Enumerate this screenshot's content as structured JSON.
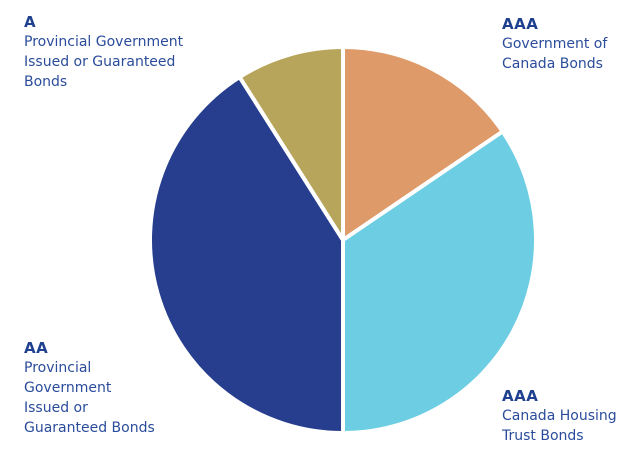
{
  "chart_data": {
    "type": "pie",
    "slices": [
      {
        "rating": "AAA",
        "label": "Government of\nCanada Bonds",
        "value": 15.5,
        "color": "#de9a68"
      },
      {
        "rating": "AAA",
        "label": "Canada Housing\nTrust Bonds",
        "value": 34.5,
        "color": "#6ccde3"
      },
      {
        "rating": "AA",
        "label": "Provincial\nGovernment\nIssued or\nGuaranteed Bonds",
        "value": 41,
        "color": "#263e8d"
      },
      {
        "rating": "A",
        "label": "Provincial Government\nIssued or Guaranteed\nBonds",
        "value": 9,
        "color": "#b8a55c"
      }
    ]
  }
}
